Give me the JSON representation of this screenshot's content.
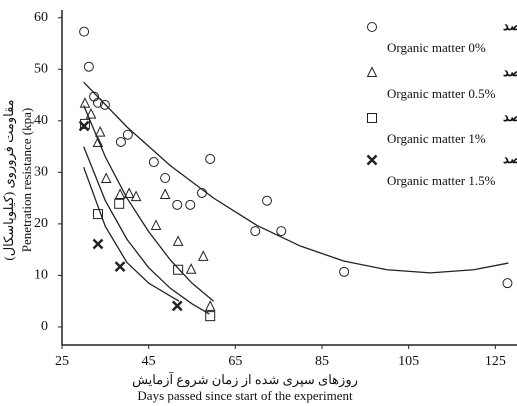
{
  "chart_data": {
    "type": "scatter",
    "y_label": [
      "مقاومت فروروی (کیلوپاسکال)",
      "Penetration resistance (kpa)"
    ],
    "x_label": [
      "روزهای سپری شده از زمان شروع آزمایش",
      "Days passed since start of the experiment"
    ],
    "xlim": [
      25,
      130
    ],
    "ylim": [
      -3.5,
      61.5
    ],
    "xticks": [
      25,
      45,
      65,
      85,
      105,
      125
    ],
    "yticks": [
      0,
      10,
      20,
      30,
      40,
      50,
      60
    ],
    "legend": "top-right",
    "series": [
      {
        "name": "مواد آلی صفر درصد",
        "name_en": "Organic matter 0%",
        "marker": "circle",
        "color": "#222",
        "x": [
          30.1,
          31.2,
          32.4,
          33.3,
          34.9,
          38.6,
          40.2,
          46.2,
          48.8,
          51.6,
          54.6,
          57.3,
          59.2,
          69.6,
          72.3,
          75.6,
          90.1,
          127.8
        ],
        "values": [
          57.3,
          50.5,
          44.7,
          43.5,
          43.1,
          35.9,
          37.3,
          32.0,
          28.9,
          23.7,
          23.7,
          26.0,
          32.6,
          18.6,
          24.5,
          18.6,
          10.7,
          8.5
        ],
        "fit": {
          "x": [
            30,
            40,
            50,
            60,
            70,
            80,
            90,
            100,
            110,
            120,
            128
          ],
          "y": [
            47.5,
            38.8,
            31.3,
            25.0,
            19.7,
            15.7,
            12.8,
            11.1,
            10.5,
            11.1,
            12.4
          ]
        }
      },
      {
        "name": "مواد آلی نیم درصد",
        "name_en": "Organic matter 0.5%",
        "marker": "triangle",
        "color": "#222",
        "x": [
          30.3,
          31.7,
          33.8,
          33.3,
          35.2,
          38.4,
          40.5,
          42.1,
          46.7,
          48.8,
          51.8,
          54.8,
          57.6,
          59.2
        ],
        "values": [
          43.3,
          41.2,
          37.7,
          35.7,
          28.7,
          25.6,
          25.8,
          25.2,
          19.6,
          25.6,
          16.5,
          11.1,
          13.6,
          3.9
        ],
        "fit": {
          "x": [
            30,
            35,
            40,
            45,
            50,
            55,
            60
          ],
          "y": [
            43,
            33,
            25,
            18.5,
            13,
            8.5,
            5
          ]
        }
      },
      {
        "name": "مواد آلی یک درصد",
        "name_en": "Organic matter 1%",
        "marker": "square",
        "color": "#222",
        "x": [
          30.3,
          33.3,
          38.2,
          51.8,
          59.2
        ],
        "values": [
          39.4,
          21.9,
          23.9,
          11.1,
          2.1
        ],
        "fit": {
          "x": [
            30,
            35,
            40,
            45,
            50,
            55,
            59
          ],
          "y": [
            35,
            24.5,
            17,
            11.5,
            7.5,
            4.5,
            2.5
          ]
        }
      },
      {
        "name": "مواد آلی یک ونیم درصد",
        "name_en": "Organic matter 1.5%",
        "marker": "x",
        "color": "#222",
        "x": [
          30.1,
          33.3,
          38.4,
          51.6
        ],
        "values": [
          39.0,
          16.1,
          11.7,
          4.1
        ],
        "fit": {
          "x": [
            30,
            35,
            40,
            45,
            52
          ],
          "y": [
            31,
            19.5,
            12.5,
            8.5,
            5
          ]
        }
      }
    ]
  }
}
